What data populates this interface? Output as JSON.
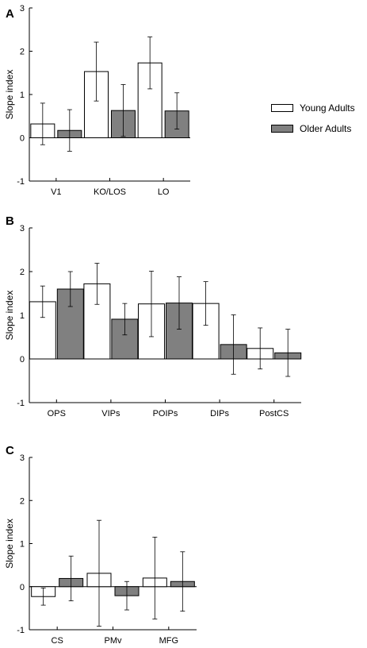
{
  "legend": {
    "young_label": "Young Adults",
    "older_label": "Older Adults",
    "young_color": "#ffffff",
    "older_color": "#808080"
  },
  "chart_data": [
    {
      "panel": "A",
      "type": "bar",
      "ylabel": "Slope index",
      "ylim": [
        -1,
        3
      ],
      "yticks": [
        -1,
        0,
        1,
        2,
        3
      ],
      "categories": [
        "V1",
        "KO/LOS",
        "LO"
      ],
      "series": [
        {
          "name": "Young Adults",
          "values": [
            0.32,
            1.53,
            1.73
          ],
          "errors": [
            0.48,
            0.68,
            0.6
          ]
        },
        {
          "name": "Older Adults",
          "values": [
            0.17,
            0.63,
            0.62
          ],
          "errors": [
            0.48,
            0.6,
            0.42
          ]
        }
      ]
    },
    {
      "panel": "B",
      "type": "bar",
      "ylabel": "Slope index",
      "ylim": [
        -1,
        3
      ],
      "yticks": [
        -1,
        0,
        1,
        2,
        3
      ],
      "categories": [
        "OPS",
        "VIPs",
        "POIPs",
        "DIPs",
        "PostCS"
      ],
      "series": [
        {
          "name": "Young Adults",
          "values": [
            1.31,
            1.72,
            1.26,
            1.27,
            0.24
          ],
          "errors": [
            0.36,
            0.47,
            0.75,
            0.5,
            0.47
          ]
        },
        {
          "name": "Older Adults",
          "values": [
            1.6,
            0.91,
            1.28,
            0.33,
            0.14
          ],
          "errors": [
            0.4,
            0.36,
            0.6,
            0.68,
            0.54
          ]
        }
      ]
    },
    {
      "panel": "C",
      "type": "bar",
      "ylabel": "Slope index",
      "ylim": [
        -1,
        3
      ],
      "yticks": [
        -1,
        0,
        1,
        2,
        3
      ],
      "categories": [
        "CS",
        "PMv",
        "MFG"
      ],
      "series": [
        {
          "name": "Young Adults",
          "values": [
            -0.23,
            0.31,
            0.2
          ],
          "errors": [
            0.2,
            1.23,
            0.95
          ]
        },
        {
          "name": "Older Adults",
          "values": [
            0.19,
            -0.21,
            0.12
          ],
          "errors": [
            0.52,
            0.33,
            0.69
          ]
        }
      ]
    }
  ]
}
